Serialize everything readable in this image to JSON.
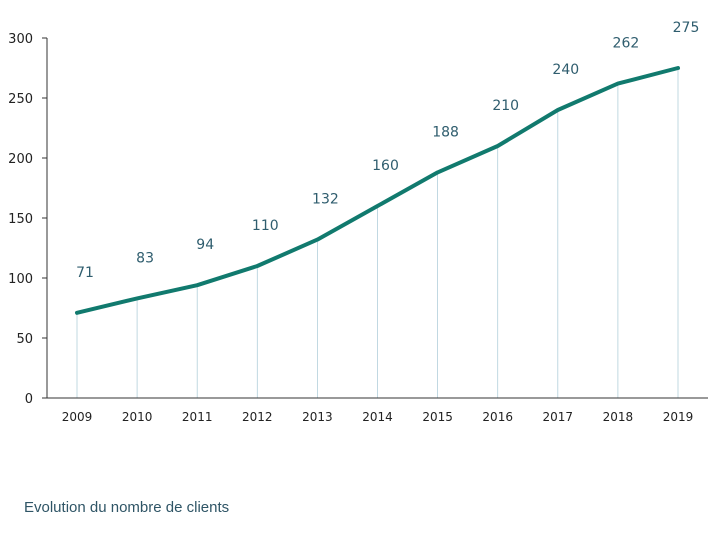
{
  "chart_data": {
    "type": "line",
    "categories": [
      "2009",
      "2010",
      "2011",
      "2012",
      "2013",
      "2014",
      "2015",
      "2016",
      "2017",
      "2018",
      "2019"
    ],
    "values": [
      71,
      83,
      94,
      110,
      132,
      160,
      188,
      210,
      240,
      262,
      275
    ],
    "data_labels": [
      "71",
      "83",
      "94",
      "110",
      "132",
      "160",
      "188",
      "210",
      "240",
      "262",
      "275"
    ],
    "yticks": [
      "0",
      "50",
      "100",
      "150",
      "200",
      "250",
      "300"
    ],
    "ylim": [
      0,
      300
    ],
    "title": "",
    "xlabel": "",
    "ylabel": "",
    "grid": false,
    "line_color": "#117a6e",
    "drop_line_color": "#9fc4d2"
  },
  "caption": "Evolution du nombre de clients"
}
